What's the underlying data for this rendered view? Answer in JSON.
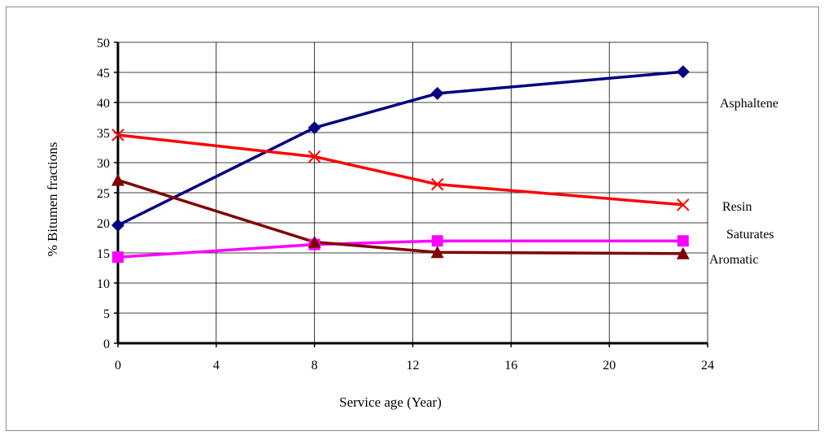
{
  "chart_data": {
    "type": "line",
    "title": "",
    "xlabel": "Service age (Year)",
    "ylabel": "% Bitumen fractions",
    "xlim": [
      0,
      24
    ],
    "ylim": [
      0,
      50
    ],
    "xticks": [
      0,
      4,
      8,
      12,
      16,
      20,
      24
    ],
    "yticks": [
      0,
      5,
      10,
      15,
      20,
      25,
      30,
      35,
      40,
      45,
      50
    ],
    "grid": true,
    "legend": "inline labels at right end of each series",
    "series": [
      {
        "name": "Asphaltene",
        "color": "#000080",
        "marker": "diamond",
        "points": [
          [
            0,
            19.6
          ],
          [
            8,
            35.8
          ],
          [
            13,
            41.5
          ],
          [
            23,
            45.1
          ]
        ]
      },
      {
        "name": "Resin",
        "color": "#ff0000",
        "marker": "x",
        "points": [
          [
            0,
            34.6
          ],
          [
            8,
            31.0
          ],
          [
            13,
            26.4
          ],
          [
            23,
            23.0
          ]
        ]
      },
      {
        "name": "Saturates",
        "color": "#ff00ff",
        "marker": "square",
        "points": [
          [
            0,
            14.3
          ],
          [
            8,
            16.4
          ],
          [
            13,
            17.0
          ],
          [
            23,
            17.0
          ]
        ]
      },
      {
        "name": "Aromatic",
        "color": "#800000",
        "marker": "triangle",
        "points": [
          [
            0,
            27.1
          ],
          [
            8,
            16.8
          ],
          [
            13,
            15.1
          ],
          [
            23,
            14.9
          ]
        ]
      }
    ]
  }
}
